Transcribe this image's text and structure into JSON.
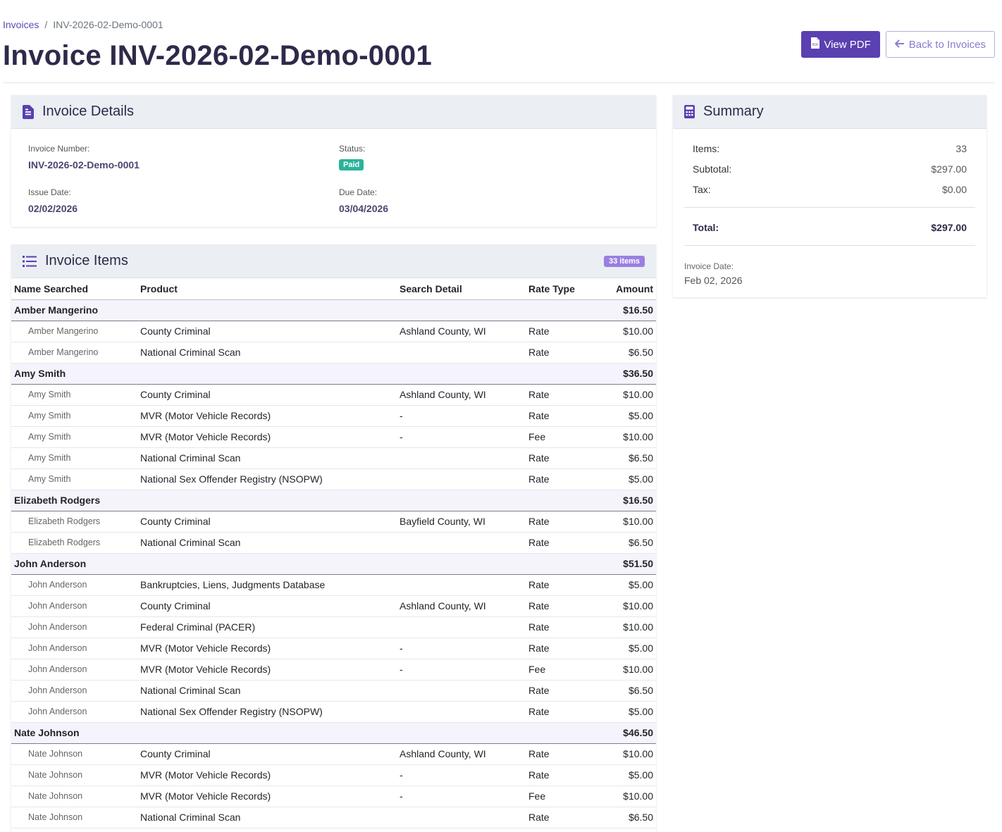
{
  "breadcrumb": {
    "parent": "Invoices",
    "separator": "/",
    "current": "INV-2026-02-Demo-0001"
  },
  "page": {
    "title": "Invoice INV-2026-02-Demo-0001"
  },
  "actions": {
    "view_pdf": "View PDF",
    "back": "Back to Invoices"
  },
  "details": {
    "title": "Invoice Details",
    "invoice_number_label": "Invoice Number:",
    "invoice_number": "INV-2026-02-Demo-0001",
    "status_label": "Status:",
    "status": "Paid",
    "issue_date_label": "Issue Date:",
    "issue_date": "02/02/2026",
    "due_date_label": "Due Date:",
    "due_date": "03/04/2026"
  },
  "items": {
    "title": "Invoice Items",
    "count_badge": "33 items",
    "columns": [
      "Name Searched",
      "Product",
      "Search Detail",
      "Rate Type",
      "Amount"
    ],
    "groups": [
      {
        "name": "Amber Mangerino",
        "total": "$16.50",
        "rows": [
          {
            "name": "Amber Mangerino",
            "product": "County Criminal",
            "detail": "Ashland County, WI",
            "rate": "Rate",
            "amount": "$10.00"
          },
          {
            "name": "Amber Mangerino",
            "product": "National Criminal Scan",
            "detail": "",
            "rate": "Rate",
            "amount": "$6.50"
          }
        ]
      },
      {
        "name": "Amy Smith",
        "total": "$36.50",
        "rows": [
          {
            "name": "Amy Smith",
            "product": "County Criminal",
            "detail": "Ashland County, WI",
            "rate": "Rate",
            "amount": "$10.00"
          },
          {
            "name": "Amy Smith",
            "product": "MVR (Motor Vehicle Records)",
            "detail": "-",
            "rate": "Rate",
            "amount": "$5.00"
          },
          {
            "name": "Amy Smith",
            "product": "MVR (Motor Vehicle Records)",
            "detail": "-",
            "rate": "Fee",
            "amount": "$10.00"
          },
          {
            "name": "Amy Smith",
            "product": "National Criminal Scan",
            "detail": "",
            "rate": "Rate",
            "amount": "$6.50"
          },
          {
            "name": "Amy Smith",
            "product": "National Sex Offender Registry (NSOPW)",
            "detail": "",
            "rate": "Rate",
            "amount": "$5.00"
          }
        ]
      },
      {
        "name": "Elizabeth Rodgers",
        "total": "$16.50",
        "rows": [
          {
            "name": "Elizabeth Rodgers",
            "product": "County Criminal",
            "detail": "Bayfield County, WI",
            "rate": "Rate",
            "amount": "$10.00"
          },
          {
            "name": "Elizabeth Rodgers",
            "product": "National Criminal Scan",
            "detail": "",
            "rate": "Rate",
            "amount": "$6.50"
          }
        ]
      },
      {
        "name": "John Anderson",
        "total": "$51.50",
        "rows": [
          {
            "name": "John Anderson",
            "product": "Bankruptcies, Liens, Judgments Database",
            "detail": "",
            "rate": "Rate",
            "amount": "$5.00"
          },
          {
            "name": "John Anderson",
            "product": "County Criminal",
            "detail": "Ashland County, WI",
            "rate": "Rate",
            "amount": "$10.00"
          },
          {
            "name": "John Anderson",
            "product": "Federal Criminal (PACER)",
            "detail": "",
            "rate": "Rate",
            "amount": "$10.00"
          },
          {
            "name": "John Anderson",
            "product": "MVR (Motor Vehicle Records)",
            "detail": "-",
            "rate": "Rate",
            "amount": "$5.00"
          },
          {
            "name": "John Anderson",
            "product": "MVR (Motor Vehicle Records)",
            "detail": "-",
            "rate": "Fee",
            "amount": "$10.00"
          },
          {
            "name": "John Anderson",
            "product": "National Criminal Scan",
            "detail": "",
            "rate": "Rate",
            "amount": "$6.50"
          },
          {
            "name": "John Anderson",
            "product": "National Sex Offender Registry (NSOPW)",
            "detail": "",
            "rate": "Rate",
            "amount": "$5.00"
          }
        ]
      },
      {
        "name": "Nate Johnson",
        "total": "$46.50",
        "rows": [
          {
            "name": "Nate Johnson",
            "product": "County Criminal",
            "detail": "Ashland County, WI",
            "rate": "Rate",
            "amount": "$10.00"
          },
          {
            "name": "Nate Johnson",
            "product": "MVR (Motor Vehicle Records)",
            "detail": "-",
            "rate": "Rate",
            "amount": "$5.00"
          },
          {
            "name": "Nate Johnson",
            "product": "MVR (Motor Vehicle Records)",
            "detail": "-",
            "rate": "Fee",
            "amount": "$10.00"
          },
          {
            "name": "Nate Johnson",
            "product": "National Criminal Scan",
            "detail": "",
            "rate": "Rate",
            "amount": "$6.50"
          }
        ]
      }
    ]
  },
  "summary": {
    "title": "Summary",
    "items_label": "Items:",
    "items_value": "33",
    "subtotal_label": "Subtotal:",
    "subtotal_value": "$297.00",
    "tax_label": "Tax:",
    "tax_value": "$0.00",
    "total_label": "Total:",
    "total_value": "$297.00",
    "invoice_date_label": "Invoice Date:",
    "invoice_date_value": "Feb 02, 2026"
  },
  "icons": {
    "pdf": "file-pdf-icon",
    "back": "arrow-left-icon",
    "details": "file-document-icon",
    "items": "list-icon",
    "summary": "calculator-icon"
  },
  "colors": {
    "brand": "#5a40b1",
    "paid": "#2bb39a",
    "badge": "#9a7fe3"
  }
}
